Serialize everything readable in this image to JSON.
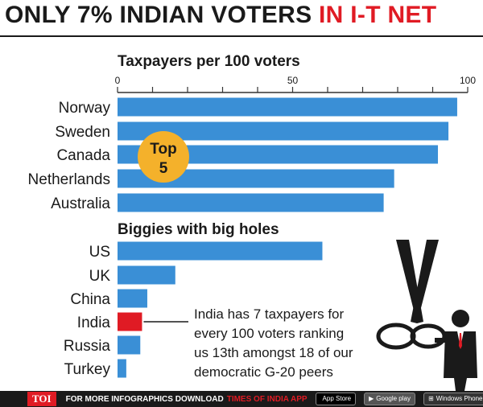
{
  "headline": {
    "part1": "ONLY 7% INDIAN VOTERS ",
    "part2": "IN I-T NET"
  },
  "chart_data": {
    "type": "bar",
    "orientation": "horizontal",
    "title": "Taxpayers per 100 voters",
    "xlim": [
      0,
      100
    ],
    "x_ticks": [
      0,
      50,
      100
    ],
    "groups": [
      {
        "label": "",
        "badge": {
          "line1": "Top",
          "line2": "5"
        },
        "categories": [
          "Norway",
          "Sweden",
          "Canada",
          "Netherlands",
          "Australia"
        ],
        "values": [
          97,
          94.5,
          91.5,
          79,
          76
        ]
      },
      {
        "label": "Biggies with big holes",
        "categories": [
          "US",
          "UK",
          "China",
          "India",
          "Russia",
          "Turkey"
        ],
        "values": [
          58.5,
          16.5,
          8.5,
          7,
          6.5,
          2.5
        ],
        "highlight": "India"
      }
    ],
    "annotation": [
      "India has 7 taxpayers for",
      "every 100 voters ranking",
      "us 13th amongst 18 of our",
      "democratic G-20 peers"
    ],
    "colors": {
      "bar": "#3a8fd6",
      "highlight": "#e01b24",
      "badge": "#f4b12b",
      "title_accent": "#e01b24"
    }
  },
  "footer": {
    "logo": "TOI",
    "text": "FOR MORE  INFOGRAPHICS DOWNLOAD",
    "app_name": "TIMES OF INDIA  APP",
    "app_store": "App Store",
    "google_play": "Google play",
    "windows": "Windows Phone",
    "icons": [
      "apple-icon",
      "google-play-icon",
      "windows-icon"
    ]
  }
}
